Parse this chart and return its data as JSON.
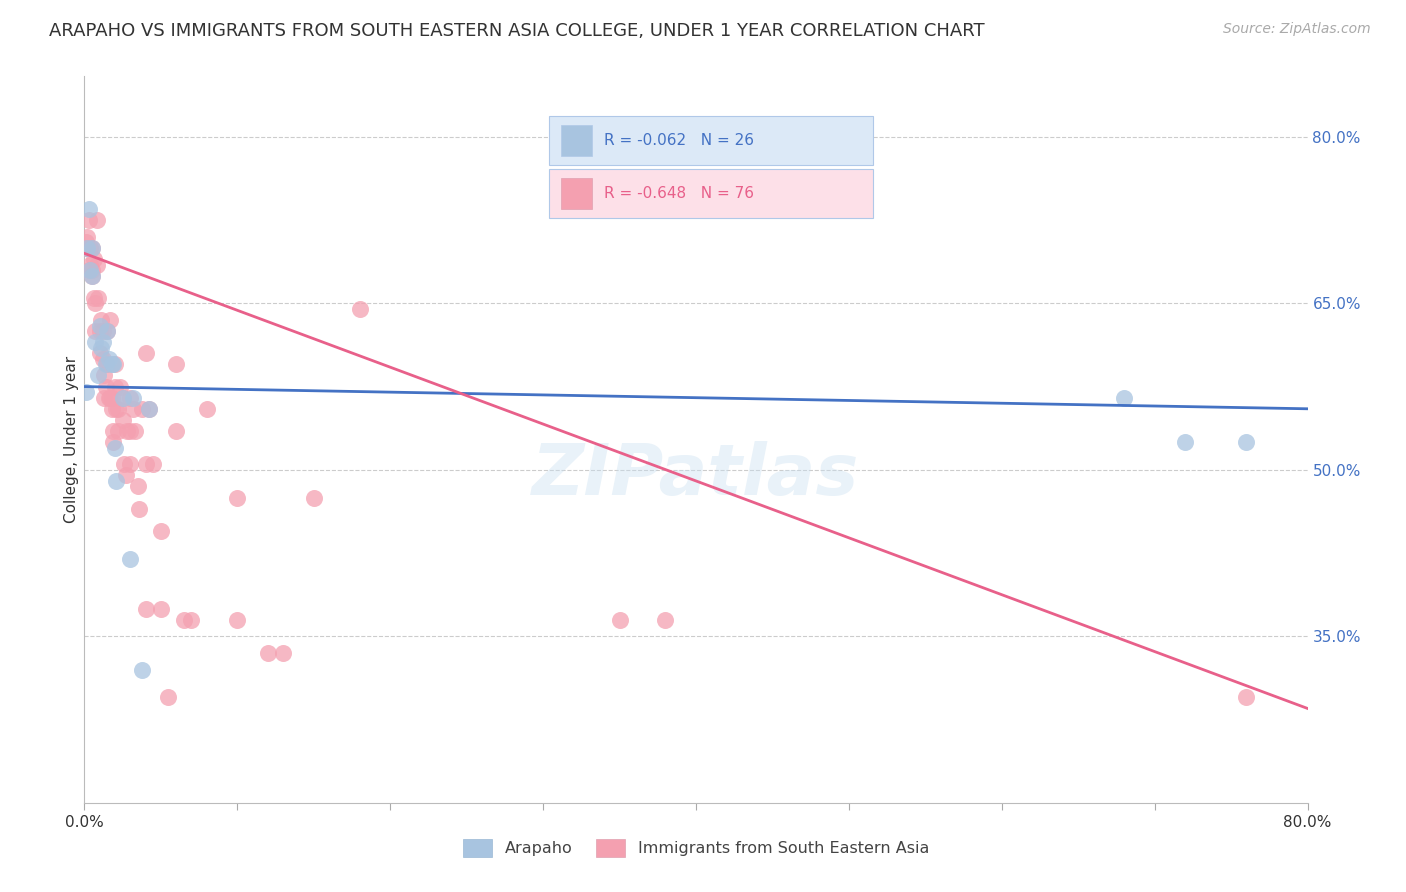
{
  "title": "ARAPAHO VS IMMIGRANTS FROM SOUTH EASTERN ASIA COLLEGE, UNDER 1 YEAR CORRELATION CHART",
  "source": "Source: ZipAtlas.com",
  "ylabel": "College, Under 1 year",
  "right_yticks": [
    "80.0%",
    "65.0%",
    "50.0%",
    "35.0%"
  ],
  "right_ytick_vals": [
    0.8,
    0.65,
    0.5,
    0.35
  ],
  "xmin": 0.0,
  "xmax": 0.8,
  "ymin": 0.2,
  "ymax": 0.855,
  "arapaho_color": "#a8c4e0",
  "pink_color": "#f4a0b0",
  "blue_line_color": "#4472c4",
  "pink_line_color": "#e8608a",
  "legend_box_blue": "#dce9f7",
  "legend_box_pink": "#fde0e8",
  "legend_border": "#b0c8e8",
  "R_arapaho": -0.062,
  "N_arapaho": 26,
  "R_sea": -0.648,
  "N_sea": 76,
  "watermark": "ZIPatlas",
  "arapaho_points": [
    [
      0.001,
      0.57
    ],
    [
      0.002,
      0.7
    ],
    [
      0.003,
      0.735
    ],
    [
      0.004,
      0.68
    ],
    [
      0.005,
      0.7
    ],
    [
      0.005,
      0.675
    ],
    [
      0.007,
      0.615
    ],
    [
      0.009,
      0.585
    ],
    [
      0.01,
      0.63
    ],
    [
      0.011,
      0.61
    ],
    [
      0.012,
      0.615
    ],
    [
      0.014,
      0.595
    ],
    [
      0.015,
      0.625
    ],
    [
      0.016,
      0.6
    ],
    [
      0.018,
      0.595
    ],
    [
      0.019,
      0.595
    ],
    [
      0.02,
      0.52
    ],
    [
      0.021,
      0.49
    ],
    [
      0.025,
      0.565
    ],
    [
      0.03,
      0.42
    ],
    [
      0.032,
      0.565
    ],
    [
      0.038,
      0.32
    ],
    [
      0.042,
      0.555
    ],
    [
      0.68,
      0.565
    ],
    [
      0.72,
      0.525
    ],
    [
      0.76,
      0.525
    ]
  ],
  "sea_points": [
    [
      0.001,
      0.705
    ],
    [
      0.001,
      0.7
    ],
    [
      0.002,
      0.7
    ],
    [
      0.002,
      0.71
    ],
    [
      0.003,
      0.68
    ],
    [
      0.003,
      0.725
    ],
    [
      0.004,
      0.7
    ],
    [
      0.004,
      0.685
    ],
    [
      0.005,
      0.7
    ],
    [
      0.005,
      0.68
    ],
    [
      0.005,
      0.675
    ],
    [
      0.006,
      0.69
    ],
    [
      0.006,
      0.655
    ],
    [
      0.007,
      0.65
    ],
    [
      0.007,
      0.625
    ],
    [
      0.008,
      0.725
    ],
    [
      0.008,
      0.685
    ],
    [
      0.009,
      0.655
    ],
    [
      0.01,
      0.625
    ],
    [
      0.01,
      0.605
    ],
    [
      0.011,
      0.635
    ],
    [
      0.012,
      0.625
    ],
    [
      0.012,
      0.6
    ],
    [
      0.013,
      0.585
    ],
    [
      0.013,
      0.565
    ],
    [
      0.014,
      0.575
    ],
    [
      0.015,
      0.625
    ],
    [
      0.015,
      0.595
    ],
    [
      0.016,
      0.565
    ],
    [
      0.017,
      0.635
    ],
    [
      0.017,
      0.565
    ],
    [
      0.018,
      0.565
    ],
    [
      0.018,
      0.555
    ],
    [
      0.019,
      0.535
    ],
    [
      0.019,
      0.525
    ],
    [
      0.02,
      0.595
    ],
    [
      0.02,
      0.575
    ],
    [
      0.021,
      0.555
    ],
    [
      0.022,
      0.555
    ],
    [
      0.022,
      0.535
    ],
    [
      0.023,
      0.575
    ],
    [
      0.025,
      0.565
    ],
    [
      0.025,
      0.545
    ],
    [
      0.026,
      0.505
    ],
    [
      0.027,
      0.495
    ],
    [
      0.028,
      0.535
    ],
    [
      0.03,
      0.565
    ],
    [
      0.03,
      0.535
    ],
    [
      0.03,
      0.505
    ],
    [
      0.032,
      0.555
    ],
    [
      0.033,
      0.535
    ],
    [
      0.035,
      0.485
    ],
    [
      0.036,
      0.465
    ],
    [
      0.038,
      0.555
    ],
    [
      0.04,
      0.605
    ],
    [
      0.04,
      0.505
    ],
    [
      0.04,
      0.375
    ],
    [
      0.042,
      0.555
    ],
    [
      0.045,
      0.505
    ],
    [
      0.05,
      0.445
    ],
    [
      0.05,
      0.375
    ],
    [
      0.055,
      0.295
    ],
    [
      0.06,
      0.595
    ],
    [
      0.06,
      0.535
    ],
    [
      0.065,
      0.365
    ],
    [
      0.07,
      0.365
    ],
    [
      0.08,
      0.555
    ],
    [
      0.1,
      0.475
    ],
    [
      0.1,
      0.365
    ],
    [
      0.12,
      0.335
    ],
    [
      0.13,
      0.335
    ],
    [
      0.15,
      0.475
    ],
    [
      0.18,
      0.645
    ],
    [
      0.35,
      0.365
    ],
    [
      0.38,
      0.365
    ],
    [
      0.76,
      0.295
    ]
  ],
  "arapaho_line_x": [
    0.0,
    0.8
  ],
  "arapaho_line_y": [
    0.575,
    0.555
  ],
  "sea_line_x": [
    0.0,
    0.8
  ],
  "sea_line_y": [
    0.695,
    0.285
  ],
  "xtick_positions": [
    0.0,
    0.1,
    0.2,
    0.3,
    0.4,
    0.5,
    0.6,
    0.7,
    0.8
  ],
  "grid_color": "#cccccc",
  "background_color": "#ffffff",
  "title_fontsize": 13,
  "axis_label_fontsize": 11,
  "tick_fontsize": 11,
  "source_fontsize": 10
}
